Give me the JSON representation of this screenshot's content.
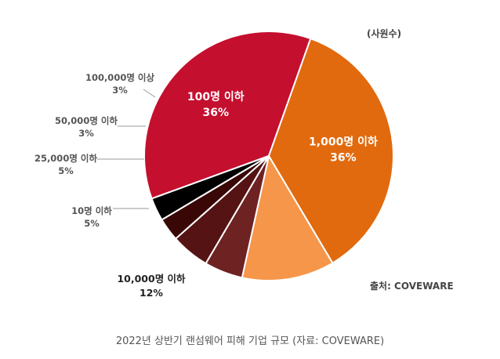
{
  "chart_data": {
    "type": "pie",
    "unit_label": "(사원수)",
    "source": "출처: COVEWARE",
    "slices": [
      {
        "name": "100명 이하",
        "value": 36,
        "value_label": "36%",
        "color": "#c50f2f"
      },
      {
        "name": "1,000명 이하",
        "value": 36,
        "value_label": "36%",
        "color": "#e16a0e"
      },
      {
        "name": "10,000명 이하",
        "value": 12,
        "value_label": "12%",
        "color": "#f5964a"
      },
      {
        "name": "10명 이하",
        "value": 5,
        "value_label": "5%",
        "color": "#6e2222"
      },
      {
        "name": "25,000명 이하",
        "value": 5,
        "value_label": "5%",
        "color": "#561313"
      },
      {
        "name": "50,000명 이하",
        "value": 3,
        "value_label": "3%",
        "color": "#3a0707"
      },
      {
        "name": "100,000명 이상",
        "value": 3,
        "value_label": "3%",
        "color": "#000000"
      }
    ]
  },
  "caption": "2022년 상반기 랜섬웨어 피해 기업 규모 (자료: COVEWARE)"
}
